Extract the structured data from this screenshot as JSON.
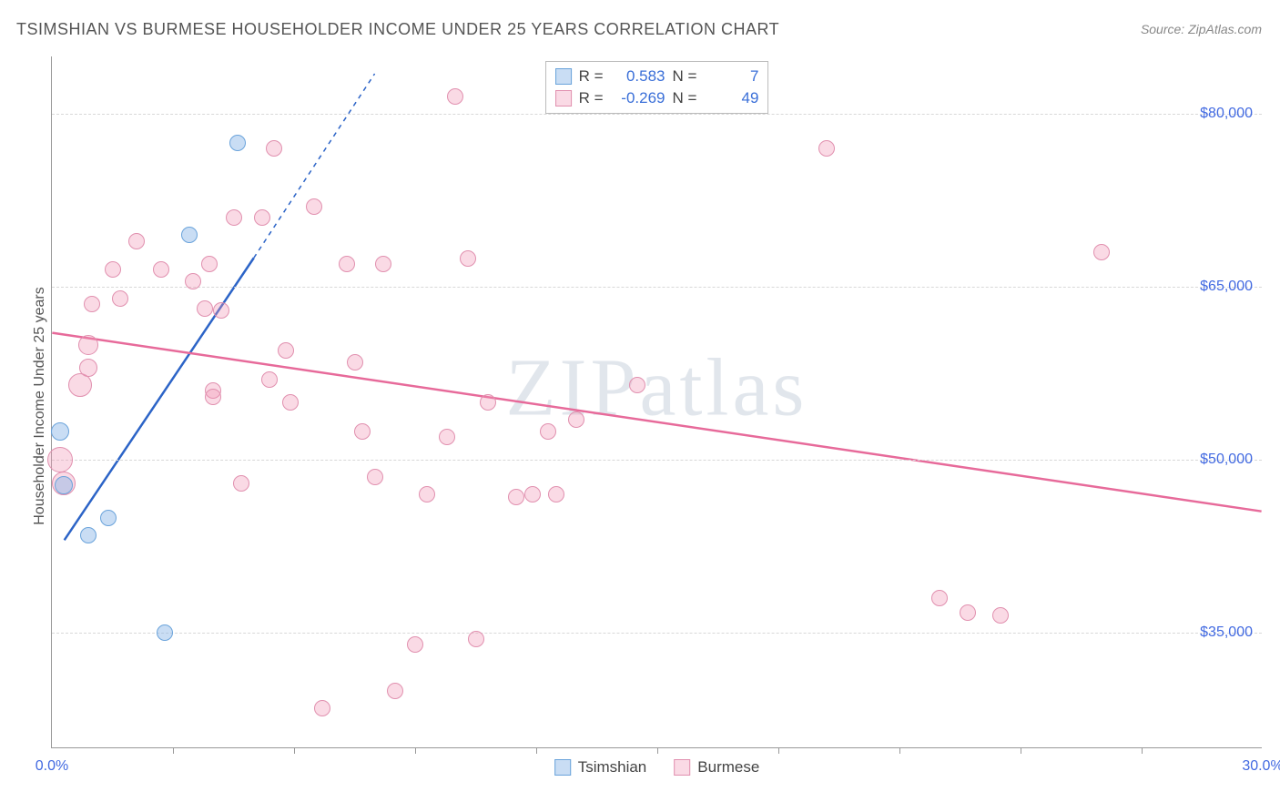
{
  "title": "TSIMSHIAN VS BURMESE HOUSEHOLDER INCOME UNDER 25 YEARS CORRELATION CHART",
  "source": "Source: ZipAtlas.com",
  "watermark": "ZIPatlas",
  "y_axis_title": "Householder Income Under 25 years",
  "x": {
    "min": 0.0,
    "max": 30.0,
    "label_min": "0.0%",
    "label_max": "30.0%",
    "ticks": [
      3,
      6,
      9,
      12,
      15,
      18,
      21,
      24,
      27
    ]
  },
  "y": {
    "min": 25000,
    "max": 85000,
    "gridlines": [
      35000,
      50000,
      65000,
      80000
    ],
    "labels": [
      "$35,000",
      "$50,000",
      "$65,000",
      "$80,000"
    ]
  },
  "series": {
    "a": {
      "name": "Tsimshian",
      "color_fill": "rgba(135,180,230,0.45)",
      "color_stroke": "#6aa3db",
      "R": "0.583",
      "N": "7",
      "trend": {
        "x1": 0.3,
        "y1": 43000,
        "x2": 5.0,
        "y2": 67500,
        "dash_x2": 8.0,
        "dash_y2": 83500,
        "color": "#2c64c7",
        "width": 2.5
      }
    },
    "b": {
      "name": "Burmese",
      "color_fill": "rgba(240,150,180,0.35)",
      "color_stroke": "#e190af",
      "R": "-0.269",
      "N": "49",
      "trend": {
        "x1": 0.0,
        "y1": 61000,
        "x2": 30.0,
        "y2": 45500,
        "color": "#e76a9a",
        "width": 2.5
      }
    }
  },
  "points_a": [
    {
      "x": 0.2,
      "y": 52500,
      "r": 10
    },
    {
      "x": 0.3,
      "y": 47800,
      "r": 10
    },
    {
      "x": 0.9,
      "y": 43500,
      "r": 9
    },
    {
      "x": 1.4,
      "y": 45000,
      "r": 9
    },
    {
      "x": 2.8,
      "y": 35000,
      "r": 9
    },
    {
      "x": 3.4,
      "y": 69500,
      "r": 9
    },
    {
      "x": 4.6,
      "y": 77500,
      "r": 9
    }
  ],
  "points_b": [
    {
      "x": 0.2,
      "y": 50000,
      "r": 14
    },
    {
      "x": 0.3,
      "y": 48000,
      "r": 13
    },
    {
      "x": 0.7,
      "y": 56500,
      "r": 13
    },
    {
      "x": 0.9,
      "y": 60000,
      "r": 11
    },
    {
      "x": 0.9,
      "y": 58000,
      "r": 10
    },
    {
      "x": 1.0,
      "y": 63500,
      "r": 9
    },
    {
      "x": 1.5,
      "y": 66500,
      "r": 9
    },
    {
      "x": 1.7,
      "y": 64000,
      "r": 9
    },
    {
      "x": 2.1,
      "y": 69000,
      "r": 9
    },
    {
      "x": 2.7,
      "y": 66500,
      "r": 9
    },
    {
      "x": 3.5,
      "y": 65500,
      "r": 9
    },
    {
      "x": 3.8,
      "y": 63100,
      "r": 9
    },
    {
      "x": 3.9,
      "y": 67000,
      "r": 9
    },
    {
      "x": 4.0,
      "y": 56000,
      "r": 9
    },
    {
      "x": 4.0,
      "y": 55500,
      "r": 9
    },
    {
      "x": 4.2,
      "y": 63000,
      "r": 9
    },
    {
      "x": 4.5,
      "y": 71000,
      "r": 9
    },
    {
      "x": 4.7,
      "y": 48000,
      "r": 9
    },
    {
      "x": 5.2,
      "y": 71000,
      "r": 9
    },
    {
      "x": 5.4,
      "y": 57000,
      "r": 9
    },
    {
      "x": 5.5,
      "y": 77000,
      "r": 9
    },
    {
      "x": 5.8,
      "y": 59500,
      "r": 9
    },
    {
      "x": 5.9,
      "y": 55000,
      "r": 9
    },
    {
      "x": 6.5,
      "y": 72000,
      "r": 9
    },
    {
      "x": 6.7,
      "y": 28500,
      "r": 9
    },
    {
      "x": 7.3,
      "y": 67000,
      "r": 9
    },
    {
      "x": 7.5,
      "y": 58500,
      "r": 9
    },
    {
      "x": 7.7,
      "y": 52500,
      "r": 9
    },
    {
      "x": 8.0,
      "y": 48500,
      "r": 9
    },
    {
      "x": 8.2,
      "y": 67000,
      "r": 9
    },
    {
      "x": 8.5,
      "y": 30000,
      "r": 9
    },
    {
      "x": 9.0,
      "y": 34000,
      "r": 9
    },
    {
      "x": 9.3,
      "y": 47000,
      "r": 9
    },
    {
      "x": 9.8,
      "y": 52000,
      "r": 9
    },
    {
      "x": 10.0,
      "y": 81500,
      "r": 9
    },
    {
      "x": 10.3,
      "y": 67500,
      "r": 9
    },
    {
      "x": 10.5,
      "y": 34500,
      "r": 9
    },
    {
      "x": 10.8,
      "y": 55000,
      "r": 9
    },
    {
      "x": 11.5,
      "y": 46800,
      "r": 9
    },
    {
      "x": 11.9,
      "y": 47000,
      "r": 9
    },
    {
      "x": 12.3,
      "y": 52500,
      "r": 9
    },
    {
      "x": 12.5,
      "y": 47000,
      "r": 9
    },
    {
      "x": 13.0,
      "y": 53500,
      "r": 9
    },
    {
      "x": 14.5,
      "y": 56500,
      "r": 9
    },
    {
      "x": 19.2,
      "y": 77000,
      "r": 9
    },
    {
      "x": 22.0,
      "y": 38000,
      "r": 9
    },
    {
      "x": 22.7,
      "y": 36800,
      "r": 9
    },
    {
      "x": 23.5,
      "y": 36500,
      "r": 9
    },
    {
      "x": 26.0,
      "y": 68000,
      "r": 9
    }
  ]
}
